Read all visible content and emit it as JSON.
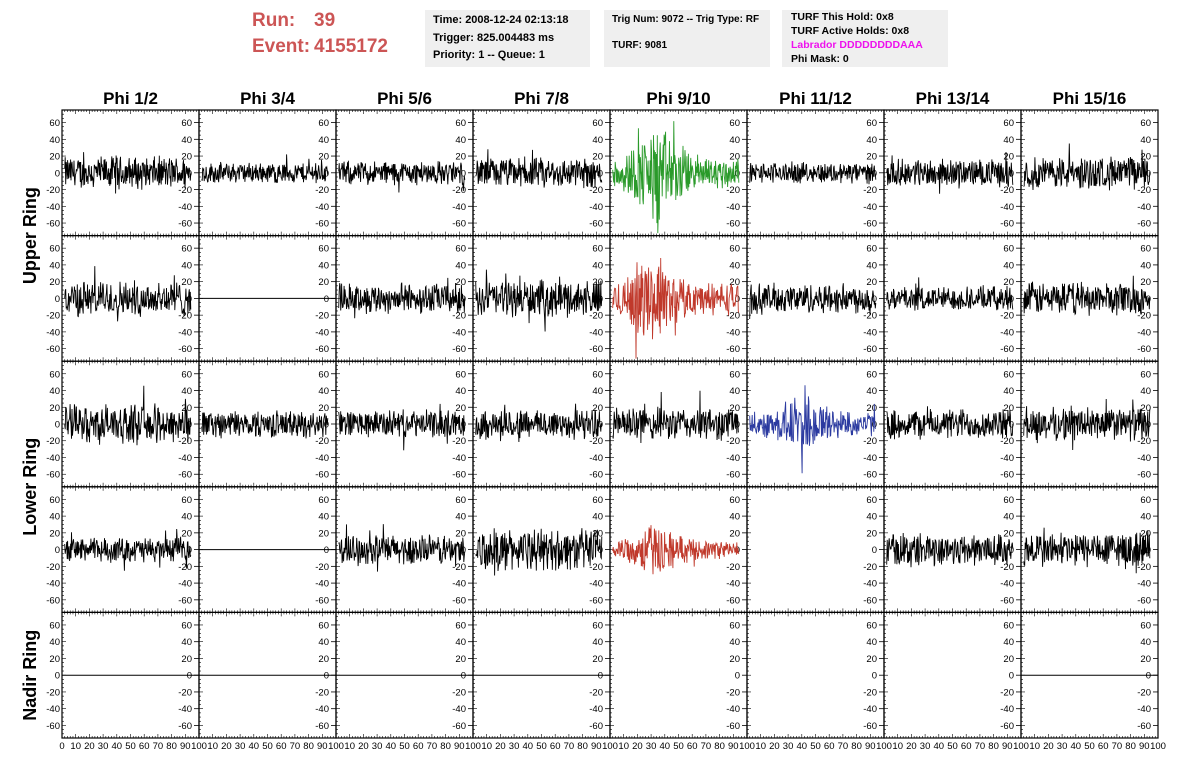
{
  "header": {
    "run_label": "Run:",
    "run_value": "39",
    "event_label": "Event:",
    "event_value": "4155172",
    "time": "Time: 2008-12-24 02:13:18",
    "trigger": "Trigger: 825.004483 ms",
    "priority": "Priority: 1 -- Queue: 1",
    "trig_num": "Trig Num: 9072 -- Trig Type: RF",
    "turf": "TURF: 9081",
    "turf_this_hold": "TURF This Hold: 0x8",
    "turf_active_holds": "TURF Active Holds: 0x8",
    "labrador": "Labrador DDDDDDDDAAA",
    "phi_mask": "Phi Mask: 0"
  },
  "colors": {
    "header_run": "#cc5555",
    "labrador": "#ee11ee",
    "trace_default": "#000000",
    "trace_green": "#2a9a2a",
    "trace_red": "#c0392b",
    "trace_blue": "#2b3aa0",
    "pave_bg": "#efefef"
  },
  "chart_data": {
    "type": "line",
    "columns": [
      "Phi 1/2",
      "Phi 3/4",
      "Phi 5/6",
      "Phi 7/8",
      "Phi 9/10",
      "Phi 11/12",
      "Phi 13/14",
      "Phi 15/16"
    ],
    "ring_labels": [
      {
        "label": "Upper Ring",
        "rows": [
          0,
          1
        ]
      },
      {
        "label": "Lower Ring",
        "rows": [
          2,
          3
        ]
      },
      {
        "label": "Nadir Ring",
        "rows": [
          4
        ]
      }
    ],
    "xlim": [
      0,
      100
    ],
    "ylim": [
      -75,
      75
    ],
    "y_ticks": [
      60,
      40,
      20,
      0,
      -20,
      -40,
      -60
    ],
    "y_tick_labels": [
      "60",
      "40",
      "20",
      "0",
      "-20",
      "-40",
      "-60"
    ],
    "x_tick_labels": [
      "0",
      "10",
      "20",
      "30",
      "40",
      "50",
      "60",
      "70",
      "80",
      "90",
      "100"
    ],
    "panels": [
      [
        {
          "trace": "noise",
          "amplitude": 22,
          "color": "trace_default"
        },
        {
          "trace": "noise",
          "amplitude": 14,
          "color": "trace_default"
        },
        {
          "trace": "noise",
          "amplitude": 16,
          "color": "trace_default"
        },
        {
          "trace": "noise",
          "amplitude": 20,
          "color": "trace_default"
        },
        {
          "trace": "pulse",
          "amplitude": 22,
          "pulse_peak": 60,
          "pulse_center": 35,
          "color": "trace_green"
        },
        {
          "trace": "noise",
          "amplitude": 14,
          "color": "trace_default"
        },
        {
          "trace": "noise",
          "amplitude": 18,
          "color": "trace_default"
        },
        {
          "trace": "noise",
          "amplitude": 22,
          "color": "trace_default"
        }
      ],
      [
        {
          "trace": "noise",
          "amplitude": 24,
          "color": "trace_default"
        },
        {
          "trace": "flat",
          "amplitude": 0,
          "color": "trace_default"
        },
        {
          "trace": "noise",
          "amplitude": 20,
          "color": "trace_default"
        },
        {
          "trace": "noise",
          "amplitude": 24,
          "color": "trace_default"
        },
        {
          "trace": "pulse",
          "amplitude": 22,
          "pulse_peak": 55,
          "pulse_center": 30,
          "color": "trace_red"
        },
        {
          "trace": "noise",
          "amplitude": 20,
          "color": "trace_default"
        },
        {
          "trace": "noise",
          "amplitude": 16,
          "color": "trace_default"
        },
        {
          "trace": "noise",
          "amplitude": 22,
          "color": "trace_default"
        }
      ],
      [
        {
          "trace": "noise",
          "amplitude": 26,
          "color": "trace_default"
        },
        {
          "trace": "noise",
          "amplitude": 18,
          "color": "trace_default"
        },
        {
          "trace": "noise",
          "amplitude": 18,
          "color": "trace_default"
        },
        {
          "trace": "noise",
          "amplitude": 20,
          "color": "trace_default"
        },
        {
          "trace": "noise",
          "amplitude": 22,
          "color": "trace_default"
        },
        {
          "trace": "pulse",
          "amplitude": 16,
          "pulse_peak": 40,
          "pulse_center": 42,
          "color": "trace_blue"
        },
        {
          "trace": "noise",
          "amplitude": 20,
          "color": "trace_default"
        },
        {
          "trace": "noise",
          "amplitude": 22,
          "color": "trace_default"
        }
      ],
      [
        {
          "trace": "noise",
          "amplitude": 16,
          "color": "trace_default"
        },
        {
          "trace": "flat",
          "amplitude": 0,
          "color": "trace_default"
        },
        {
          "trace": "noise",
          "amplitude": 20,
          "color": "trace_default"
        },
        {
          "trace": "noise",
          "amplitude": 28,
          "color": "trace_default"
        },
        {
          "trace": "pulse",
          "amplitude": 12,
          "pulse_peak": 35,
          "pulse_center": 32,
          "color": "trace_red"
        },
        {
          "trace": "noise",
          "amplitude": 0,
          "color": "trace_default",
          "empty": true
        },
        {
          "trace": "noise",
          "amplitude": 22,
          "color": "trace_default"
        },
        {
          "trace": "noise",
          "amplitude": 24,
          "color": "trace_default"
        }
      ],
      [
        {
          "trace": "flat",
          "amplitude": 0,
          "color": "trace_default"
        },
        {
          "trace": "flat",
          "amplitude": 0,
          "color": "trace_default"
        },
        {
          "trace": "flat",
          "amplitude": 0,
          "color": "trace_default"
        },
        {
          "trace": "flat",
          "amplitude": 0,
          "color": "trace_default"
        },
        {
          "trace": "flat",
          "amplitude": 0,
          "color": "trace_default",
          "empty": true
        },
        {
          "trace": "flat",
          "amplitude": 0,
          "color": "trace_default",
          "empty": true
        },
        {
          "trace": "flat",
          "amplitude": 0,
          "color": "trace_default",
          "empty": true
        },
        {
          "trace": "flat",
          "amplitude": 0,
          "color": "trace_default"
        }
      ]
    ]
  }
}
